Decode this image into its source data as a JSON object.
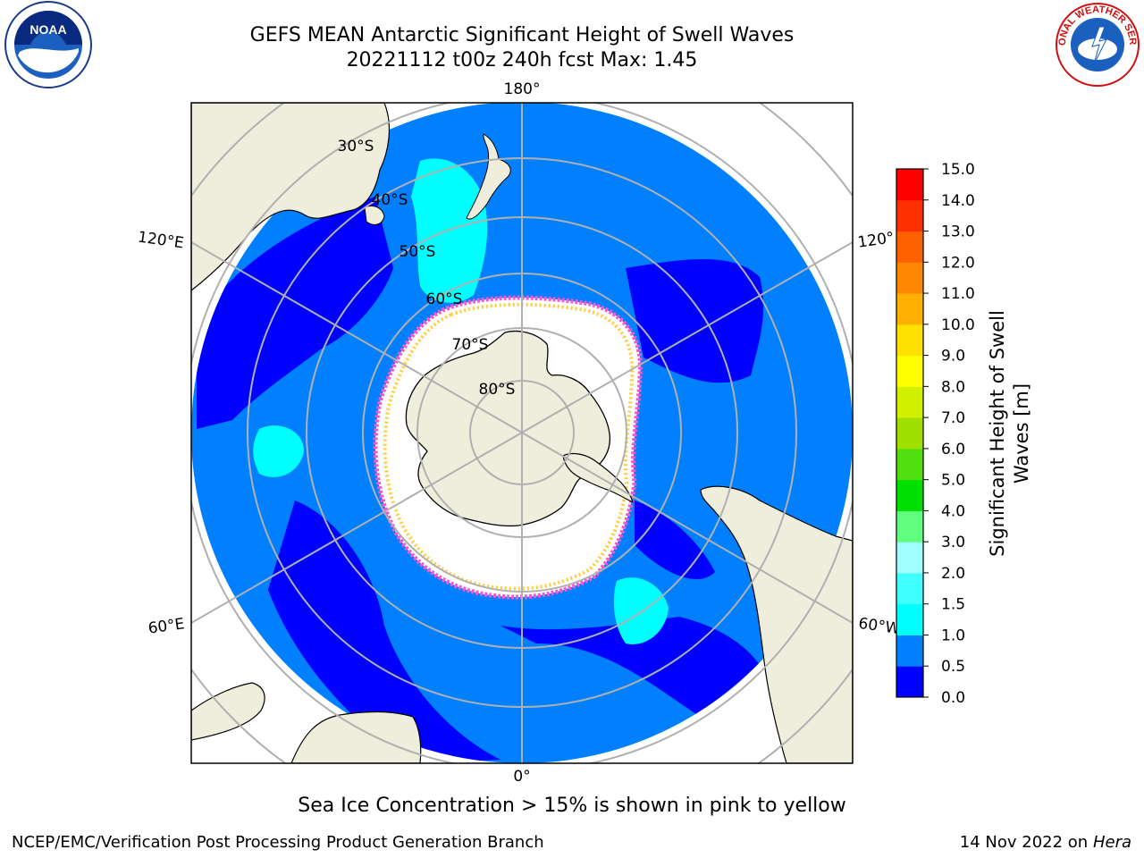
{
  "title": {
    "line1": "GEFS MEAN Antarctic Significant Height of Swell Waves",
    "line2": "20221112 t00z 240h fcst   Max: 1.45"
  },
  "map": {
    "projection": "south-polar-stereographic",
    "longitude_labels": {
      "top": "180°",
      "bottom": "0°",
      "left_upper": "120°E",
      "left_lower": "60°E",
      "right_upper": "120°",
      "right_lower": "60°W"
    },
    "latitude_labels": [
      "30°S",
      "40°S",
      "50°S",
      "60°S",
      "70°S",
      "80°S"
    ],
    "colors": {
      "land": "#efeedc",
      "sea_ice": "#ffffff",
      "band_0_0p5": "#0000ff",
      "band_0p5_1": "#0080ff",
      "band_1_1p5": "#00ffff",
      "ice_edge_pink": "#ff66cc",
      "ice_edge_yellow": "#ffcc33",
      "grid": "#b0b0b0"
    }
  },
  "colorbar": {
    "label_line1": "Significant Height of Swell",
    "label_line2": "Waves [m]",
    "ticks": [
      "0.0",
      "0.5",
      "1.0",
      "1.5",
      "2.0",
      "3.0",
      "4.0",
      "5.0",
      "6.0",
      "7.0",
      "8.0",
      "9.0",
      "10.0",
      "11.0",
      "12.0",
      "13.0",
      "14.0",
      "15.0"
    ],
    "colors": [
      "#0000ff",
      "#0080ff",
      "#00ffff",
      "#40ffff",
      "#a0ffff",
      "#60ff80",
      "#00e000",
      "#50e010",
      "#a0e000",
      "#d0f000",
      "#ffff00",
      "#ffe000",
      "#ffb000",
      "#ff8800",
      "#ff6000",
      "#ff3000",
      "#ff0000"
    ]
  },
  "footer": {
    "note": "Sea Ice Concentration > 15% is shown in pink to yellow",
    "credit_left": "NCEP/EMC/Verification Post Processing Product Generation Branch",
    "date": "14 Nov 2022 on",
    "machine": "Hera"
  },
  "logos": {
    "left": "NOAA",
    "right": "NATIONAL WEATHER SERVICE"
  }
}
